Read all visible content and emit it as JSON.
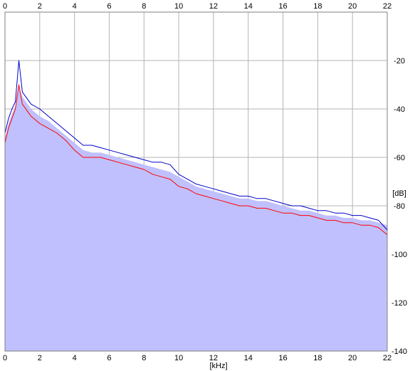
{
  "chart_data": {
    "type": "area",
    "xlabel": "[kHz]",
    "ylabel": "[dB]",
    "xlim": [
      0,
      22
    ],
    "ylim": [
      -140,
      0
    ],
    "x_ticks": [
      0,
      2,
      4,
      6,
      8,
      10,
      12,
      14,
      16,
      18,
      20,
      22
    ],
    "y_ticks": [
      -20,
      -40,
      -60,
      -80,
      -100,
      -120,
      -140
    ],
    "grid": true,
    "axes_color": "#808080",
    "grid_color": "#b4b4b4",
    "plot_background": "#ffffff",
    "series": [
      {
        "color": "#c0c0ff",
        "style": "filled-area",
        "x": [
          0,
          0.2,
          0.4,
          0.6,
          0.8,
          1.0,
          1.5,
          2.0,
          2.5,
          3.0,
          3.5,
          4.0,
          4.5,
          5.0,
          5.5,
          6.0,
          6.5,
          7.0,
          7.5,
          8.0,
          8.5,
          9.0,
          9.5,
          10.0,
          10.5,
          11.0,
          11.5,
          12.0,
          12.5,
          13.0,
          13.5,
          14.0,
          14.5,
          15.0,
          15.5,
          16.0,
          16.5,
          17.0,
          17.5,
          18.0,
          18.5,
          19.0,
          19.5,
          20.0,
          20.5,
          21.0,
          21.5,
          22.0
        ],
        "values": [
          -52,
          -46,
          -42,
          -39,
          -31,
          -35,
          -40,
          -43,
          -45,
          -48,
          -51,
          -54,
          -57,
          -58,
          -58,
          -59,
          -60,
          -61,
          -62,
          -63,
          -64,
          -65,
          -66,
          -68,
          -70,
          -72,
          -73,
          -74,
          -75,
          -76,
          -77,
          -77,
          -78,
          -78,
          -79,
          -80,
          -81,
          -82,
          -82,
          -83,
          -84,
          -84,
          -85,
          -85,
          -86,
          -86,
          -87,
          -88
        ]
      },
      {
        "color": "#ff0000",
        "style": "line",
        "x": [
          0,
          0.2,
          0.4,
          0.6,
          0.8,
          1.0,
          1.5,
          2.0,
          2.5,
          3.0,
          3.5,
          4.0,
          4.5,
          5.0,
          5.5,
          6.0,
          6.5,
          7.0,
          7.5,
          8.0,
          8.5,
          9.0,
          9.5,
          10.0,
          10.5,
          11.0,
          11.5,
          12.0,
          12.5,
          13.0,
          13.5,
          14.0,
          14.5,
          15.0,
          15.5,
          16.0,
          16.5,
          17.0,
          17.5,
          18.0,
          18.5,
          19.0,
          19.5,
          20.0,
          20.5,
          21.0,
          21.5,
          22.0
        ],
        "values": [
          -54,
          -48,
          -44,
          -40,
          -30,
          -38,
          -43,
          -46,
          -48,
          -50,
          -53,
          -57,
          -60,
          -60,
          -60,
          -61,
          -62,
          -63,
          -64,
          -65,
          -67,
          -68,
          -69,
          -72,
          -73,
          -75,
          -76,
          -77,
          -78,
          -79,
          -80,
          -80,
          -81,
          -81,
          -82,
          -83,
          -83,
          -84,
          -84,
          -85,
          -86,
          -86,
          -87,
          -87,
          -88,
          -88,
          -89,
          -92
        ]
      },
      {
        "color": "#0000cc",
        "style": "line",
        "x": [
          0,
          0.2,
          0.4,
          0.6,
          0.8,
          1.0,
          1.5,
          2.0,
          2.5,
          3.0,
          3.5,
          4.0,
          4.5,
          5.0,
          5.5,
          6.0,
          6.5,
          7.0,
          7.5,
          8.0,
          8.5,
          9.0,
          9.5,
          10.0,
          10.5,
          11.0,
          11.5,
          12.0,
          12.5,
          13.0,
          13.5,
          14.0,
          14.5,
          15.0,
          15.5,
          16.0,
          16.5,
          17.0,
          17.5,
          18.0,
          18.5,
          19.0,
          19.5,
          20.0,
          20.5,
          21.0,
          21.5,
          22.0
        ],
        "values": [
          -50,
          -44,
          -40,
          -37,
          -20,
          -33,
          -38,
          -40,
          -43,
          -46,
          -49,
          -52,
          -55,
          -55,
          -56,
          -57,
          -58,
          -59,
          -60,
          -61,
          -62,
          -62,
          -63,
          -67,
          -69,
          -71,
          -72,
          -73,
          -74,
          -75,
          -76,
          -76,
          -77,
          -77,
          -78,
          -79,
          -80,
          -80,
          -81,
          -82,
          -82,
          -83,
          -83,
          -84,
          -84,
          -85,
          -86,
          -90
        ]
      }
    ]
  }
}
